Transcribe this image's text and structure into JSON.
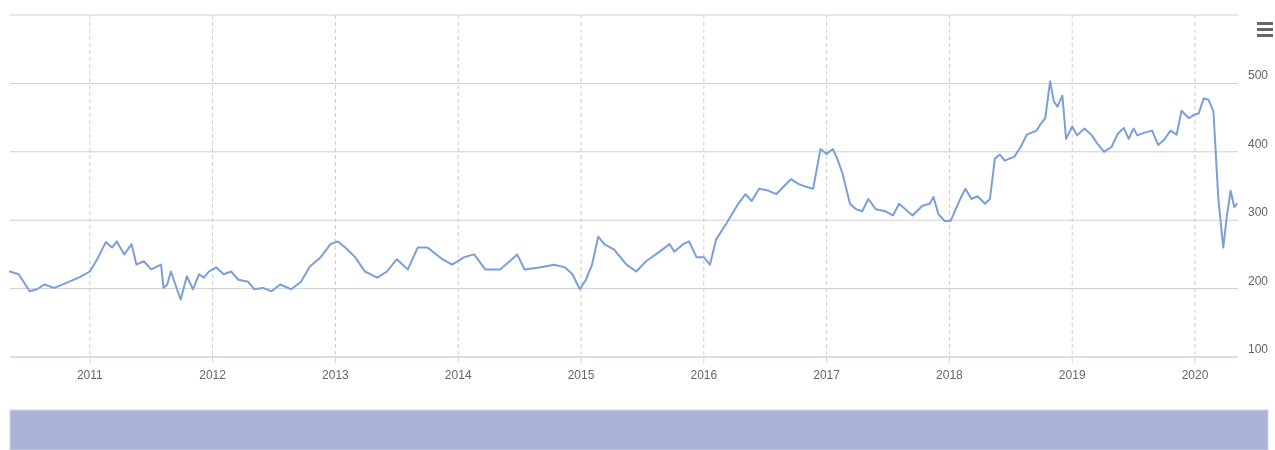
{
  "chart_data": {
    "type": "line",
    "xlim": [
      2010.35,
      2020.35
    ],
    "xticks": [
      2011,
      2012,
      2013,
      2014,
      2015,
      2016,
      2017,
      2018,
      2019,
      2020
    ],
    "ylim": [
      100,
      600
    ],
    "yticks": [
      100,
      200,
      300,
      400,
      500,
      {
        "value": 600,
        "label": null
      }
    ],
    "grid": true,
    "marker": "none",
    "line_style": "solid",
    "series": [
      {
        "color": "#7b9fd9",
        "x": [
          2010.35,
          2010.42,
          2010.45,
          2010.51,
          2010.57,
          2010.63,
          2010.71,
          2010.79,
          2010.91,
          2011.0,
          2011.06,
          2011.13,
          2011.18,
          2011.22,
          2011.28,
          2011.34,
          2011.38,
          2011.44,
          2011.5,
          2011.58,
          2011.6,
          2011.63,
          2011.66,
          2011.71,
          2011.74,
          2011.79,
          2011.84,
          2011.89,
          2011.93,
          2011.97,
          2012.03,
          2012.09,
          2012.15,
          2012.21,
          2012.29,
          2012.34,
          2012.41,
          2012.48,
          2012.55,
          2012.64,
          2012.72,
          2012.79,
          2012.88,
          2012.96,
          2013.02,
          2013.08,
          2013.16,
          2013.24,
          2013.34,
          2013.42,
          2013.5,
          2013.59,
          2013.67,
          2013.75,
          2013.87,
          2013.95,
          2014.05,
          2014.13,
          2014.22,
          2014.34,
          2014.42,
          2014.48,
          2014.54,
          2014.66,
          2014.78,
          2014.87,
          2014.93,
          2014.99,
          2015.04,
          2015.09,
          2015.14,
          2015.19,
          2015.27,
          2015.37,
          2015.45,
          2015.53,
          2015.64,
          2015.72,
          2015.76,
          2015.83,
          2015.88,
          2015.94,
          2016.0,
          2016.05,
          2016.1,
          2016.18,
          2016.28,
          2016.34,
          2016.39,
          2016.45,
          2016.53,
          2016.59,
          2016.67,
          2016.71,
          2016.77,
          2016.83,
          2016.89,
          2016.95,
          2017.0,
          2017.05,
          2017.08,
          2017.13,
          2017.19,
          2017.24,
          2017.29,
          2017.34,
          2017.4,
          2017.48,
          2017.54,
          2017.59,
          2017.66,
          2017.7,
          2017.78,
          2017.84,
          2017.87,
          2017.91,
          2017.96,
          2018.01,
          2018.08,
          2018.13,
          2018.18,
          2018.23,
          2018.29,
          2018.33,
          2018.37,
          2018.41,
          2018.45,
          2018.53,
          2018.58,
          2018.63,
          2018.71,
          2018.74,
          2018.78,
          2018.82,
          2018.85,
          2018.88,
          2018.92,
          2018.95,
          2019.0,
          2019.04,
          2019.1,
          2019.16,
          2019.2,
          2019.26,
          2019.32,
          2019.37,
          2019.42,
          2019.46,
          2019.5,
          2019.53,
          2019.59,
          2019.65,
          2019.7,
          2019.75,
          2019.8,
          2019.85,
          2019.89,
          2019.95,
          2019.99,
          2020.03,
          2020.07,
          2020.11,
          2020.15,
          2020.19,
          2020.23,
          2020.26,
          2020.29,
          2020.32,
          2020.34
        ],
        "values": [
          225,
          221,
          213,
          196,
          199,
          206,
          201,
          207,
          216,
          225,
          243,
          268,
          260,
          269,
          250,
          265,
          235,
          240,
          228,
          235,
          201,
          206,
          225,
          199,
          184,
          218,
          199,
          221,
          216,
          225,
          231,
          221,
          225,
          213,
          210,
          199,
          201,
          196,
          206,
          199,
          210,
          232,
          246,
          265,
          269,
          260,
          246,
          225,
          216,
          225,
          243,
          228,
          260,
          260,
          243,
          235,
          246,
          250,
          228,
          228,
          240,
          250,
          228,
          231,
          235,
          231,
          221,
          199,
          213,
          235,
          276,
          265,
          257,
          235,
          225,
          240,
          254,
          265,
          254,
          265,
          269,
          246,
          246,
          235,
          272,
          294,
          324,
          338,
          328,
          346,
          343,
          338,
          353,
          360,
          353,
          349,
          346,
          404,
          397,
          404,
          393,
          368,
          324,
          316,
          313,
          331,
          316,
          313,
          307,
          324,
          313,
          307,
          321,
          324,
          334,
          309,
          299,
          299,
          328,
          346,
          331,
          335,
          324,
          331,
          390,
          396,
          387,
          393,
          407,
          425,
          431,
          440,
          449,
          503,
          474,
          466,
          482,
          419,
          437,
          424,
          434,
          424,
          413,
          400,
          407,
          426,
          435,
          419,
          434,
          424,
          428,
          431,
          410,
          418,
          431,
          425,
          460,
          449,
          454,
          456,
          478,
          476,
          459,
          331,
          260,
          307,
          343,
          319,
          324
        ]
      }
    ]
  }
}
